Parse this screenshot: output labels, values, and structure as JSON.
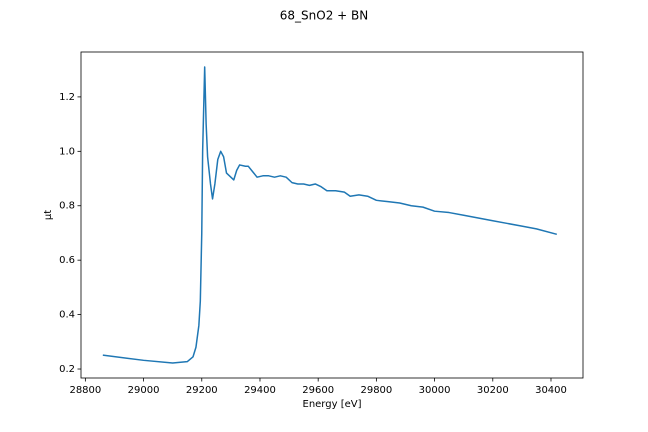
{
  "chart_data": {
    "type": "line",
    "title": "68_SnO2 + BN",
    "xlabel": "Energy [eV]",
    "ylabel": "μt",
    "x": [
      28860,
      29000,
      29100,
      29150,
      29170,
      29180,
      29190,
      29195,
      29200,
      29203,
      29210,
      29215,
      29220,
      29230,
      29237,
      29245,
      29255,
      29265,
      29275,
      29285,
      29300,
      29310,
      29320,
      29330,
      29350,
      29360,
      29375,
      29390,
      29410,
      29430,
      29450,
      29470,
      29490,
      29510,
      29530,
      29550,
      29570,
      29590,
      29610,
      29630,
      29660,
      29690,
      29710,
      29740,
      29770,
      29800,
      29840,
      29880,
      29920,
      29960,
      30000,
      30050,
      30100,
      30150,
      30200,
      30250,
      30300,
      30350,
      30420
    ],
    "values": [
      0.251,
      0.232,
      0.222,
      0.227,
      0.245,
      0.28,
      0.36,
      0.45,
      0.7,
      1.0,
      1.31,
      1.1,
      0.98,
      0.88,
      0.825,
      0.88,
      0.97,
      1.0,
      0.98,
      0.92,
      0.905,
      0.895,
      0.93,
      0.95,
      0.945,
      0.945,
      0.925,
      0.905,
      0.91,
      0.91,
      0.905,
      0.91,
      0.905,
      0.885,
      0.88,
      0.88,
      0.875,
      0.88,
      0.87,
      0.855,
      0.855,
      0.85,
      0.835,
      0.84,
      0.835,
      0.82,
      0.815,
      0.81,
      0.8,
      0.795,
      0.78,
      0.775,
      0.765,
      0.755,
      0.745,
      0.735,
      0.725,
      0.715,
      0.695
    ],
    "color": "#1f77b4",
    "xlim": [
      28785,
      30510
    ],
    "ylim": [
      0.167,
      1.365
    ],
    "xticks": [
      28800,
      29000,
      29200,
      29400,
      29600,
      29800,
      30000,
      30200,
      30400
    ],
    "yticks": [
      0.2,
      0.4,
      0.6,
      0.8,
      {
        "value": 1,
        "label": "1.0"
      },
      1.2
    ]
  }
}
